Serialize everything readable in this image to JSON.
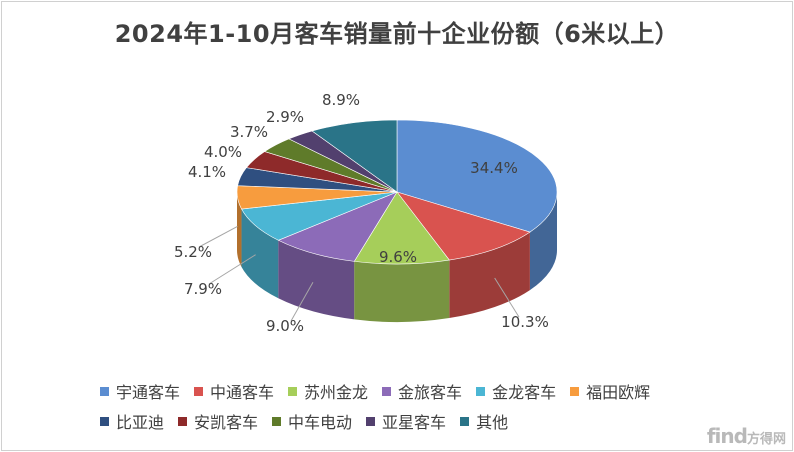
{
  "chart_data": {
    "type": "pie",
    "title": "2024年1-10月客车销量前十企业份额（6米以上）",
    "categories": [
      "宇通客车",
      "中通客车",
      "苏州金龙",
      "金旅客车",
      "金龙客车",
      "福田欧辉",
      "比亚迪",
      "安凯客车",
      "中车电动",
      "亚星客车",
      "其他"
    ],
    "values": [
      34.4,
      10.3,
      9.6,
      9.0,
      7.9,
      5.2,
      4.1,
      4.0,
      3.7,
      2.9,
      8.9
    ],
    "labels": [
      "34.4%",
      "10.3%",
      "9.6%",
      "9.0%",
      "7.9%",
      "5.2%",
      "4.1%",
      "4.0%",
      "3.7%",
      "2.9%",
      "8.9%"
    ],
    "colors": [
      "#5B8DD1",
      "#D9534F",
      "#A6CE5A",
      "#8C6BB8",
      "#4BB6D4",
      "#F79C3E",
      "#2F4F80",
      "#8E2A2A",
      "#5F7B2A",
      "#52406E",
      "#2A7488"
    ],
    "legend_position": "bottom"
  },
  "watermark": {
    "logo": "find",
    "text": "方得网"
  }
}
